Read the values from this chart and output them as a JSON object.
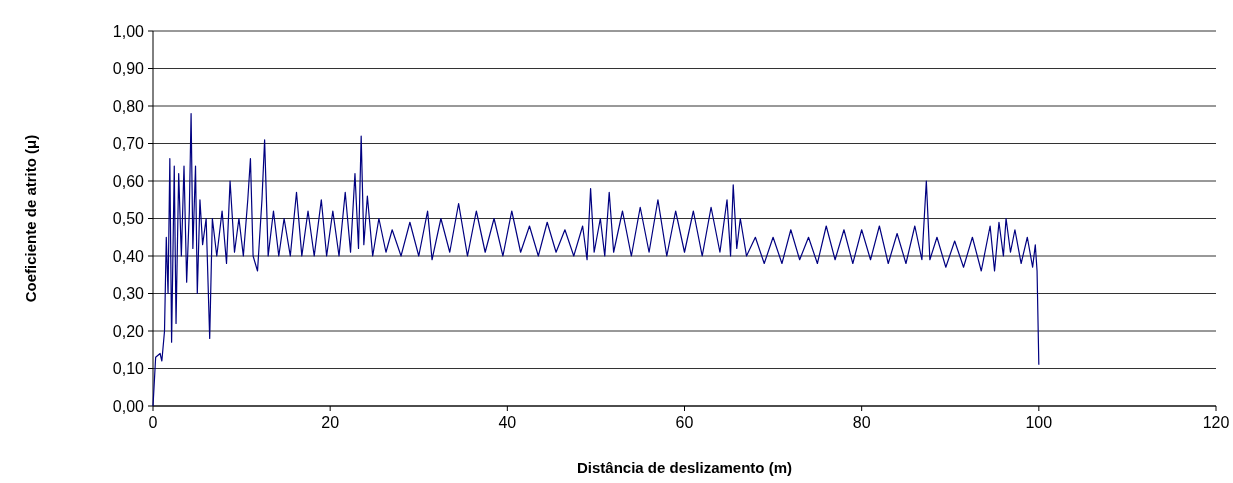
{
  "chart_data": {
    "type": "line",
    "xlabel": "Distância de deslizamento (m)",
    "ylabel": "Coeficiente de atrito (μ)",
    "xlim": [
      0,
      120
    ],
    "xticks": [
      0,
      20,
      40,
      60,
      80,
      100,
      120
    ],
    "ylim": [
      0,
      1
    ],
    "yticks": [
      {
        "value": 0,
        "label": "0,00"
      },
      {
        "value": 0.1,
        "label": "0,10"
      },
      {
        "value": 0.2,
        "label": "0,20"
      },
      {
        "value": 0.3,
        "label": "0,30"
      },
      {
        "value": 0.4,
        "label": "0,40"
      },
      {
        "value": 0.5,
        "label": "0,50"
      },
      {
        "value": 0.6,
        "label": "0,60"
      },
      {
        "value": 0.7,
        "label": "0,70"
      },
      {
        "value": 0.8,
        "label": "0,80"
      },
      {
        "value": 0.9,
        "label": "0,90"
      },
      {
        "value": 1,
        "label": "1,00"
      }
    ],
    "grid": "y",
    "legend": false,
    "marker": "none",
    "line_style": "solid",
    "series": [
      {
        "color": "#000080",
        "x": [
          0,
          0.3,
          0.8,
          1.0,
          1.3,
          1.5,
          1.7,
          1.9,
          2.1,
          2.4,
          2.6,
          2.9,
          3.2,
          3.5,
          3.8,
          4.1,
          4.3,
          4.5,
          4.8,
          5.0,
          5.3,
          5.6,
          6.0,
          6.4,
          6.7,
          7.2,
          7.8,
          8.3,
          8.7,
          9.2,
          9.7,
          10.2,
          10.7,
          11.0,
          11.3,
          11.8,
          12.3,
          12.6,
          13.0,
          13.6,
          14.2,
          14.8,
          15.5,
          16.2,
          16.8,
          17.5,
          18.2,
          19.0,
          19.6,
          20.3,
          21.0,
          21.7,
          22.3,
          22.8,
          23.2,
          23.5,
          23.8,
          24.2,
          24.8,
          25.5,
          26.3,
          27.0,
          28,
          29,
          30,
          31,
          31.5,
          32.5,
          33.5,
          34.5,
          35.5,
          36.5,
          37.5,
          38.5,
          39.5,
          40.5,
          41.5,
          42.5,
          43.5,
          44.5,
          45.5,
          46.5,
          47.5,
          48.5,
          49.0,
          49.4,
          49.8,
          50.5,
          51.0,
          51.5,
          52,
          53,
          54,
          55,
          56,
          57,
          58,
          59,
          60,
          61,
          62,
          63,
          64,
          64.8,
          65.2,
          65.5,
          65.9,
          66.3,
          67,
          68,
          69,
          70,
          71,
          72,
          73,
          74,
          75,
          76,
          77,
          78,
          79,
          80,
          81,
          82,
          83,
          84,
          85,
          86,
          86.8,
          87.3,
          87.7,
          88.5,
          89.5,
          90.5,
          91.5,
          92.5,
          93.5,
          94.5,
          95.0,
          95.5,
          96.0,
          96.3,
          96.8,
          97.3,
          98,
          98.7,
          99.3,
          99.6,
          99.8,
          100.0
        ],
        "values": [
          0,
          0.13,
          0.14,
          0.12,
          0.2,
          0.45,
          0.3,
          0.66,
          0.17,
          0.64,
          0.22,
          0.62,
          0.4,
          0.64,
          0.33,
          0.52,
          0.78,
          0.42,
          0.64,
          0.3,
          0.55,
          0.43,
          0.5,
          0.18,
          0.5,
          0.4,
          0.52,
          0.38,
          0.6,
          0.41,
          0.5,
          0.4,
          0.55,
          0.66,
          0.4,
          0.36,
          0.55,
          0.71,
          0.4,
          0.52,
          0.4,
          0.5,
          0.4,
          0.57,
          0.4,
          0.52,
          0.4,
          0.55,
          0.4,
          0.52,
          0.4,
          0.57,
          0.41,
          0.62,
          0.42,
          0.72,
          0.43,
          0.56,
          0.4,
          0.5,
          0.41,
          0.47,
          0.4,
          0.49,
          0.4,
          0.52,
          0.39,
          0.5,
          0.41,
          0.54,
          0.4,
          0.52,
          0.41,
          0.5,
          0.4,
          0.52,
          0.41,
          0.48,
          0.4,
          0.49,
          0.41,
          0.47,
          0.4,
          0.48,
          0.39,
          0.58,
          0.41,
          0.5,
          0.4,
          0.57,
          0.41,
          0.52,
          0.4,
          0.53,
          0.41,
          0.55,
          0.4,
          0.52,
          0.41,
          0.52,
          0.4,
          0.53,
          0.41,
          0.55,
          0.4,
          0.59,
          0.42,
          0.5,
          0.4,
          0.45,
          0.38,
          0.45,
          0.38,
          0.47,
          0.39,
          0.45,
          0.38,
          0.48,
          0.39,
          0.47,
          0.38,
          0.47,
          0.39,
          0.48,
          0.38,
          0.46,
          0.38,
          0.48,
          0.39,
          0.6,
          0.39,
          0.45,
          0.37,
          0.44,
          0.37,
          0.45,
          0.36,
          0.48,
          0.36,
          0.49,
          0.4,
          0.5,
          0.41,
          0.47,
          0.38,
          0.45,
          0.37,
          0.43,
          0.36,
          0.11
        ]
      }
    ]
  }
}
